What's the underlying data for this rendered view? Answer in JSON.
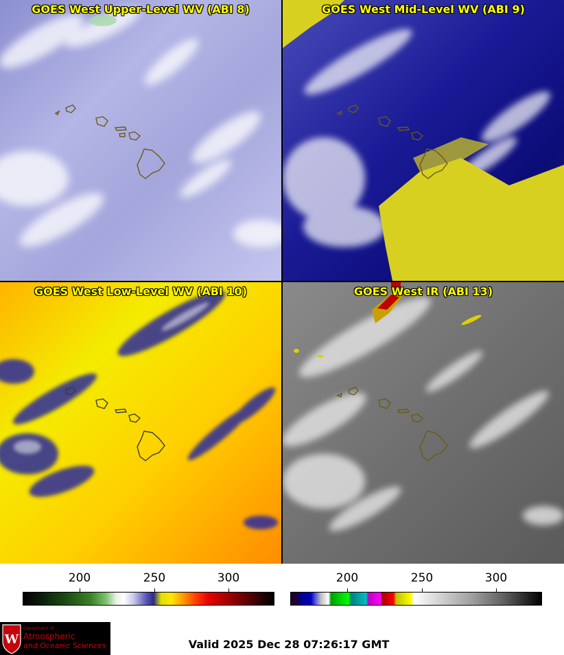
{
  "panels": [
    {
      "title": "GOES West Upper-Level WV (ABI 8)"
    },
    {
      "title": "GOES West Mid-Level WV (ABI 9)"
    },
    {
      "title": "GOES West Low-Level WV (ABI 10)"
    },
    {
      "title": "GOES West IR (ABI 13)"
    }
  ],
  "colorbars": {
    "left": {
      "ticks": [
        "200",
        "250",
        "300"
      ]
    },
    "right": {
      "ticks": [
        "200",
        "250",
        "300"
      ]
    }
  },
  "logo": {
    "line1": "Department of",
    "line2": "Atmospheric",
    "line3": "and Oceanic Sciences",
    "emblem": "W"
  },
  "footer": {
    "valid": "Valid 2025 Dec 28 07:26:17 GMT"
  }
}
